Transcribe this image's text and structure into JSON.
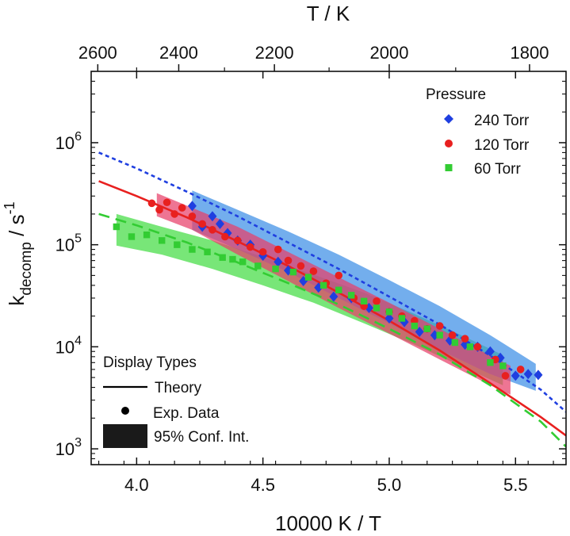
{
  "chart_data": {
    "type": "scatter",
    "x_axis": {
      "label": "10000 K / T",
      "lim": [
        3.82,
        5.7
      ],
      "ticks": [
        4.0,
        4.5,
        5.0,
        5.5
      ],
      "tick_labels": [
        "4.0",
        "4.5",
        "5.0",
        "5.5"
      ]
    },
    "top_axis": {
      "label": "T / K",
      "ticks_T": [
        2600,
        2400,
        2200,
        2000,
        1800
      ],
      "tick_labels": [
        "2600",
        "2400",
        "2200",
        "2000",
        "1800"
      ]
    },
    "y_axis": {
      "label_main": "k",
      "label_sub": "decomp",
      "label_unit": " / s",
      "label_sup": "-1",
      "scale": "log",
      "lim": [
        700,
        5000000
      ],
      "ticks": [
        1000,
        10000,
        100000,
        1000000
      ],
      "tick_base": "10",
      "tick_exponents": [
        "3",
        "4",
        "5",
        "6"
      ]
    },
    "legend_pressure": {
      "title": "Pressure",
      "placement": "top-right",
      "entries": [
        "240 Torr",
        "120 Torr",
        "60 Torr"
      ]
    },
    "legend_display": {
      "title": "Display Types",
      "placement": "bottom-left",
      "entries": [
        "Theory",
        "Exp. Data",
        "95% Conf. Int."
      ]
    },
    "series": [
      {
        "name": "240 Torr",
        "color": "#1f3fe0",
        "band_color": "#3d8fe6",
        "marker": "diamond",
        "theory_style": "dotted",
        "theory_x": [
          3.85,
          4.0,
          4.2,
          4.4,
          4.6,
          4.8,
          5.0,
          5.2,
          5.4,
          5.6,
          5.7
        ],
        "theory_y": [
          800000,
          560000,
          330000,
          190000,
          105000,
          58000,
          31000,
          16500,
          8200,
          3800,
          2300
        ],
        "band_x": [
          4.22,
          4.4,
          4.6,
          4.8,
          5.0,
          5.2,
          5.4,
          5.58
        ],
        "band_upper": [
          340000,
          220000,
          135000,
          80000,
          45000,
          25000,
          13000,
          6800
        ],
        "band_lower": [
          140000,
          90000,
          54000,
          30000,
          17000,
          9300,
          5400,
          3700
        ],
        "points_x": [
          4.22,
          4.26,
          4.3,
          4.33,
          4.36,
          4.4,
          4.45,
          4.5,
          4.56,
          4.6,
          4.66,
          4.72,
          4.78,
          4.85,
          4.92,
          5.0,
          5.06,
          5.12,
          5.18,
          5.24,
          5.3,
          5.35,
          5.4,
          5.44,
          5.5,
          5.55,
          5.59
        ],
        "points_y": [
          240000,
          150000,
          190000,
          160000,
          130000,
          110000,
          100000,
          78000,
          68000,
          56000,
          44000,
          38000,
          31000,
          30000,
          24000,
          19000,
          17500,
          14000,
          13000,
          11500,
          10500,
          10000,
          9000,
          7800,
          5200,
          5400,
          5300
        ]
      },
      {
        "name": "120 Torr",
        "color": "#e8201f",
        "band_color": "#e8406a",
        "marker": "circle",
        "theory_style": "solid",
        "theory_x": [
          3.85,
          4.0,
          4.2,
          4.4,
          4.6,
          4.8,
          5.0,
          5.2,
          5.4,
          5.6,
          5.7
        ],
        "theory_y": [
          420000,
          300000,
          185000,
          108000,
          62000,
          34000,
          18000,
          9200,
          4400,
          2050,
          1350
        ],
        "band_x": [
          4.08,
          4.22,
          4.4,
          4.6,
          4.8,
          5.0,
          5.2,
          5.4,
          5.48
        ],
        "band_upper": [
          320000,
          230000,
          150000,
          85000,
          48000,
          27000,
          15000,
          8200,
          6500
        ],
        "band_lower": [
          190000,
          140000,
          80000,
          44000,
          24000,
          13500,
          7500,
          4200,
          3400
        ],
        "points_x": [
          4.06,
          4.09,
          4.12,
          4.15,
          4.18,
          4.22,
          4.26,
          4.3,
          4.35,
          4.4,
          4.45,
          4.5,
          4.56,
          4.6,
          4.65,
          4.7,
          4.75,
          4.8,
          4.86,
          4.9,
          4.95,
          5.0,
          5.05,
          5.1,
          5.15,
          5.2,
          5.25,
          5.3,
          5.35,
          5.42,
          5.46,
          5.52
        ],
        "points_y": [
          255000,
          220000,
          260000,
          200000,
          230000,
          190000,
          160000,
          140000,
          120000,
          110000,
          95000,
          85000,
          90000,
          70000,
          62000,
          55000,
          42000,
          50000,
          30000,
          25000,
          28000,
          22000,
          20000,
          18000,
          15000,
          16000,
          13000,
          12000,
          10000,
          7500,
          5200,
          6000
        ]
      },
      {
        "name": "60 Torr",
        "color": "#33cc33",
        "band_color": "#44dd44",
        "marker": "square",
        "theory_style": "dashed",
        "theory_x": [
          3.85,
          4.0,
          4.2,
          4.4,
          4.6,
          4.8,
          5.0,
          5.2,
          5.4,
          5.6,
          5.7
        ],
        "theory_y": [
          200000,
          155000,
          105000,
          67000,
          42000,
          26000,
          15000,
          8400,
          4200,
          1850,
          1050
        ],
        "band_x": [
          3.92,
          4.1,
          4.3,
          4.5,
          4.7,
          4.9,
          5.1,
          5.3,
          5.45
        ],
        "band_upper": [
          200000,
          150000,
          110000,
          76000,
          51000,
          34000,
          21000,
          12500,
          8300
        ],
        "band_lower": [
          98000,
          80000,
          58000,
          40000,
          27000,
          17000,
          10500,
          6200,
          4200
        ],
        "points_x": [
          3.92,
          3.98,
          4.04,
          4.1,
          4.16,
          4.22,
          4.28,
          4.34,
          4.38,
          4.42,
          4.48,
          4.55,
          4.62,
          4.68,
          4.74,
          4.8,
          4.85,
          4.9,
          4.95,
          5.0,
          5.05,
          5.1,
          5.15,
          5.2,
          5.26,
          5.32,
          5.4,
          5.45
        ],
        "points_y": [
          150000,
          120000,
          125000,
          110000,
          100000,
          90000,
          85000,
          75000,
          72000,
          68000,
          62000,
          58000,
          54000,
          48000,
          40000,
          36000,
          32000,
          28000,
          24000,
          22000,
          19000,
          16000,
          15000,
          13000,
          11000,
          10000,
          7000,
          6500
        ]
      }
    ],
    "legend_colors": {
      "display_marker": "#000000",
      "display_band": "#1a1a1a"
    }
  }
}
